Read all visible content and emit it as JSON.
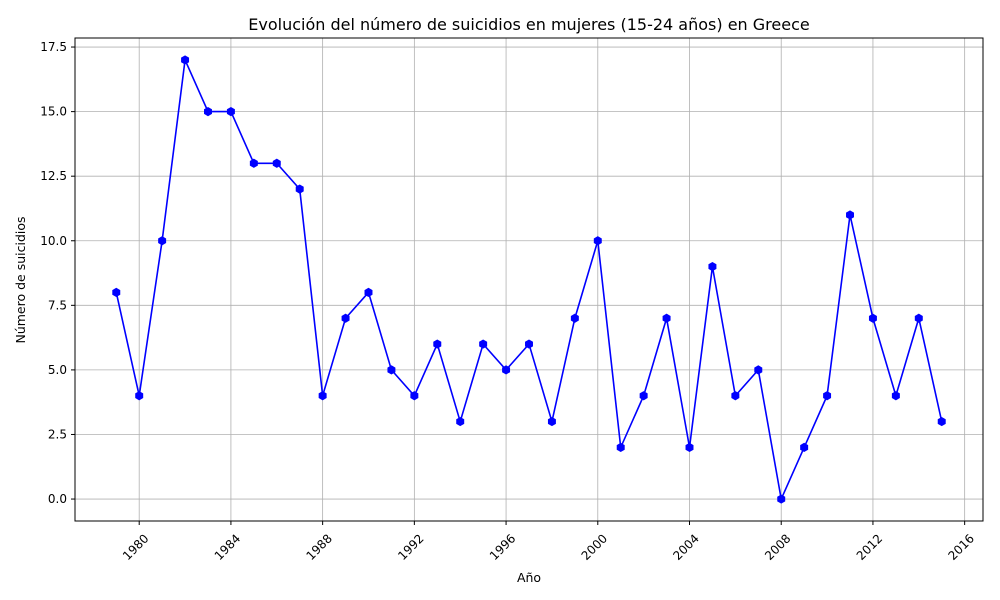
{
  "chart_data": {
    "type": "line",
    "title": "Evolución del número de suicidios en mujeres (15-24 años) en Greece",
    "xlabel": "Año",
    "ylabel": "Número de suicidios",
    "xlim": [
      1977.2,
      2016.8
    ],
    "ylim": [
      -0.85,
      17.85
    ],
    "x_ticks": [
      1980,
      1984,
      1988,
      1992,
      1996,
      2000,
      2004,
      2008,
      2012,
      2016
    ],
    "y_ticks": [
      0.0,
      2.5,
      5.0,
      7.5,
      10.0,
      12.5,
      15.0,
      17.5
    ],
    "y_tick_labels": [
      "0.0",
      "2.5",
      "5.0",
      "7.5",
      "10.0",
      "12.5",
      "15.0",
      "17.5"
    ],
    "grid": true,
    "color": "#0000ff",
    "marker": "hexagon",
    "series": [
      {
        "x": [
          1979,
          1980,
          1981,
          1982,
          1983,
          1984,
          1985,
          1986,
          1987,
          1988,
          1989,
          1990,
          1991,
          1992,
          1993,
          1994,
          1995,
          1996,
          1997,
          1998,
          1999,
          2000,
          2001,
          2002,
          2003,
          2004,
          2005,
          2006,
          2007,
          2008,
          2009,
          2010,
          2011,
          2012,
          2013,
          2014,
          2015
        ],
        "values": [
          8,
          4,
          10,
          17,
          15,
          15,
          13,
          13,
          12,
          4,
          7,
          8,
          5,
          4,
          6,
          3,
          6,
          5,
          6,
          3,
          7,
          10,
          2,
          4,
          7,
          2,
          9,
          4,
          5,
          0,
          2,
          4,
          11,
          7,
          4,
          7,
          3
        ]
      }
    ]
  }
}
